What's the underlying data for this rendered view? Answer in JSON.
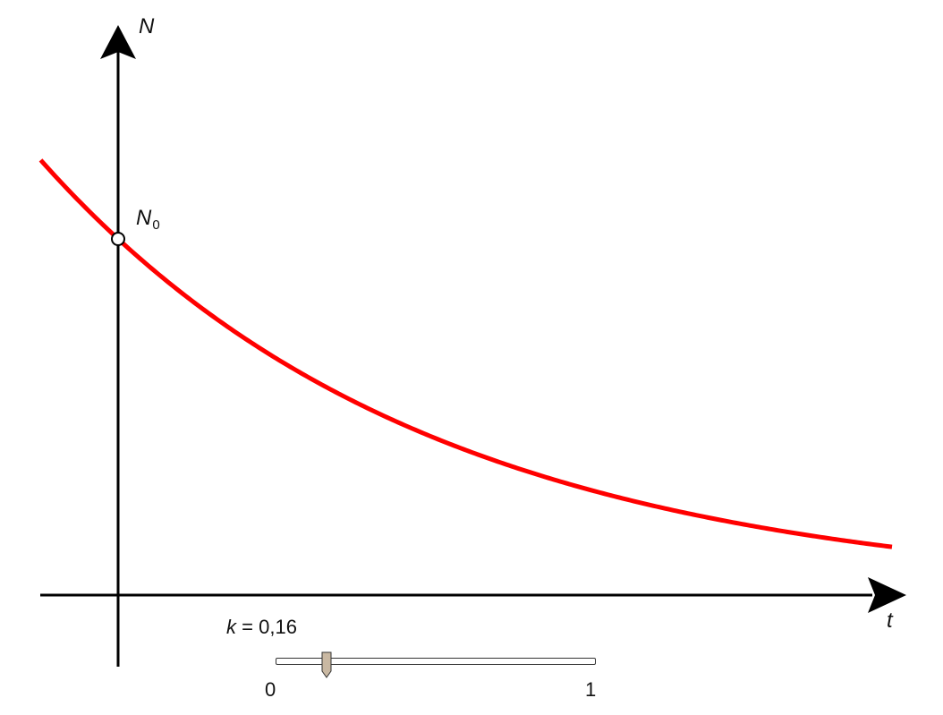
{
  "chart_data": {
    "type": "line",
    "function": "N(t) = N0 * e^(-k t)",
    "series": [
      {
        "name": "",
        "color": "#ff0000",
        "x": [
          -1.25,
          0,
          1,
          2,
          3,
          4,
          5,
          6,
          7,
          8,
          9,
          10,
          11,
          12.5
        ],
        "y": [
          1.22,
          1.0,
          0.852,
          0.726,
          0.619,
          0.527,
          0.449,
          0.383,
          0.326,
          0.278,
          0.237,
          0.202,
          0.172,
          0.135
        ]
      }
    ],
    "xlabel": "t",
    "ylabel": "N",
    "point_label": "N",
    "point_label_sub": "0",
    "xlim": [
      -1.25,
      12.5
    ],
    "ylim": [
      -0.2,
      1.6
    ],
    "grid": false,
    "slider": {
      "label": "k",
      "equals": "=",
      "value_text": "0,16",
      "value": 0.16,
      "min_label": "0",
      "max_label": "1",
      "min": 0,
      "max": 1
    },
    "colors": {
      "curve": "#ff0000",
      "axes": "#000000",
      "thumb": "#c9b8a2"
    }
  }
}
